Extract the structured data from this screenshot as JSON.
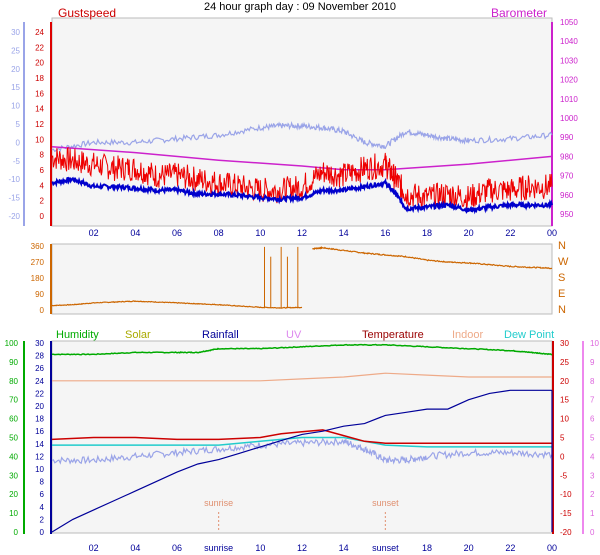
{
  "page_title": "24 hour graph day : 09 November 2010",
  "colors": {
    "gust": "#ee0000",
    "wind": "#0000cc",
    "temp_axis": "#9aa4e8",
    "baro": "#cc22cc",
    "direction": "#cc6600",
    "humidity": "#00aa00",
    "solar": "#aaaa00",
    "rainfall": "#000099",
    "uv": "#dd88ee",
    "temperature": "#990000",
    "indoor": "#eeaa88",
    "dewpoint": "#22cccc",
    "plot_bg": "#f5f5f5"
  },
  "chart_data": [
    {
      "type": "line",
      "title": "",
      "legend": [
        "Gustspeed",
        "Barometer"
      ],
      "x_ticks": [
        "02",
        "04",
        "06",
        "08",
        "10",
        "12",
        "14",
        "16",
        "18",
        "20",
        "22",
        "00"
      ],
      "xlim_hours": [
        0,
        24
      ],
      "left_axis_outer": {
        "ticks": [
          "30",
          "25",
          "20",
          "15",
          "10",
          "5",
          "0",
          "-5",
          "-10",
          "-15",
          "-20"
        ],
        "range": [
          -20,
          30
        ]
      },
      "left_axis_inner": {
        "ticks": [
          "24",
          "22",
          "20",
          "18",
          "16",
          "14",
          "12",
          "10",
          "8",
          "6",
          "4",
          "2",
          "0"
        ],
        "range": [
          0,
          25
        ]
      },
      "right_axis": {
        "ticks": [
          "1050",
          "1040",
          "1030",
          "1020",
          "1010",
          "1000",
          "990",
          "980",
          "970",
          "960",
          "950"
        ],
        "range": [
          946,
          1050
        ]
      },
      "series": [
        {
          "name": "Gustspeed",
          "axis": "inner",
          "x": [
            0,
            1,
            2,
            3,
            4,
            5,
            6,
            7,
            8,
            9,
            10,
            11,
            12,
            13,
            14,
            15,
            16,
            16.5,
            17,
            18,
            19,
            20,
            21,
            22,
            23,
            24
          ],
          "values": [
            8,
            7.5,
            7,
            6.5,
            6.5,
            5.5,
            5.5,
            5,
            4.5,
            4,
            3.5,
            3.5,
            4,
            6,
            5.5,
            6.5,
            7,
            5,
            3,
            2.5,
            3,
            2.5,
            3.5,
            3.5,
            4,
            4
          ]
        },
        {
          "axis": "inner",
          "x": [
            0,
            1,
            2,
            3,
            4,
            5,
            6,
            7,
            8,
            9,
            10,
            11,
            12,
            13,
            14,
            15,
            16,
            16.5,
            17,
            18,
            19,
            20,
            21,
            22,
            23,
            24
          ],
          "values": [
            4.5,
            5,
            4,
            4,
            3.8,
            3.5,
            3.5,
            3,
            3,
            2.8,
            2.5,
            2.3,
            2.5,
            3.5,
            3.5,
            4,
            4.5,
            3,
            1,
            1.2,
            1.5,
            0.8,
            1.2,
            1.5,
            1.5,
            1.5
          ]
        },
        {
          "axis": "outer",
          "x": [
            0,
            2,
            4,
            6,
            8,
            10,
            11,
            12,
            13,
            14,
            15,
            16,
            17,
            18,
            19,
            20,
            22,
            24
          ],
          "values": [
            -2,
            0,
            0,
            1,
            2,
            4,
            4.5,
            4.5,
            4,
            3,
            0,
            -1,
            3,
            2,
            1,
            0.5,
            1,
            2
          ]
        },
        {
          "name": "Barometer",
          "axis": "right",
          "x": [
            0,
            4,
            8,
            12,
            14,
            16,
            20,
            24
          ],
          "values": [
            985,
            982,
            978,
            975,
            973,
            973,
            976,
            980
          ]
        }
      ]
    },
    {
      "type": "scatter",
      "x_ticks": [],
      "left_axis": {
        "ticks": [
          "360",
          "270",
          "180",
          "90",
          "0"
        ],
        "range": [
          0,
          360
        ]
      },
      "right_axis": {
        "ticks": [
          "N",
          "W",
          "S",
          "E",
          "N"
        ]
      },
      "series": [
        {
          "x": [
            0,
            1,
            2,
            3,
            4,
            5,
            6,
            7,
            8,
            9,
            10,
            11,
            12,
            12.5,
            13,
            14,
            15,
            16,
            17,
            18,
            19,
            20,
            21,
            22,
            23,
            24
          ],
          "values": [
            25,
            30,
            40,
            45,
            50,
            45,
            40,
            35,
            30,
            22,
            15,
            12,
            15,
            345,
            350,
            335,
            320,
            310,
            300,
            280,
            270,
            265,
            255,
            245,
            240,
            235
          ]
        }
      ]
    },
    {
      "type": "line",
      "legend": [
        "Humidity",
        "Solar",
        "Rainfall",
        "UV",
        "Temperature",
        "Indoor",
        "Dew Point"
      ],
      "x_ticks": [
        "02",
        "04",
        "06",
        "sunrise",
        "10",
        "12",
        "14",
        "sunset",
        "18",
        "20",
        "22",
        "00"
      ],
      "annotations": [
        {
          "label": "sunrise",
          "x_hours": 8
        },
        {
          "label": "sunset",
          "x_hours": 16
        }
      ],
      "axis_humidity": {
        "ticks": [
          "100",
          "90",
          "80",
          "70",
          "60",
          "50",
          "40",
          "30",
          "20",
          "10",
          "0"
        ],
        "range": [
          0,
          100
        ]
      },
      "axis_rain": {
        "ticks": [
          "30",
          "28",
          "26",
          "24",
          "22",
          "20",
          "18",
          "16",
          "14",
          "12",
          "10",
          "8",
          "6",
          "4",
          "2",
          "0"
        ],
        "range": [
          0,
          30
        ]
      },
      "axis_temp": {
        "ticks": [
          "30",
          "25",
          "20",
          "15",
          "10",
          "5",
          "0",
          "-5",
          "-10",
          "-15",
          "-20"
        ],
        "range": [
          -20,
          30
        ]
      },
      "axis_uv": {
        "ticks": [
          "10",
          "9",
          "8",
          "7",
          "6",
          "5",
          "4",
          "3",
          "2",
          "1",
          "0"
        ],
        "range": [
          0,
          10
        ]
      },
      "series": [
        {
          "name": "Humidity",
          "axis": "humidity",
          "x": [
            0,
            2,
            4,
            6,
            7,
            8,
            10,
            12,
            14,
            16,
            18,
            20,
            22,
            23,
            24
          ],
          "values": [
            94,
            94,
            95,
            95,
            95,
            97,
            97,
            98,
            99,
            99,
            98,
            97,
            96,
            95,
            94
          ]
        },
        {
          "name": "Rainfall",
          "axis": "rain",
          "x": [
            0,
            1,
            2,
            3,
            4,
            5,
            6,
            7,
            8,
            9,
            10,
            11,
            12,
            13,
            14,
            15,
            16,
            17,
            18,
            19,
            20,
            21,
            22,
            23,
            24
          ],
          "values": [
            0,
            2,
            3.5,
            5,
            6.5,
            8,
            9.5,
            10.8,
            11.5,
            12.5,
            13.5,
            14.5,
            15.5,
            16,
            16.8,
            17.2,
            18.5,
            19,
            19.5,
            19.5,
            21,
            22,
            22.5,
            22.5,
            22.5
          ]
        },
        {
          "name": "Temperature",
          "axis": "temp",
          "x": [
            0,
            2,
            4,
            6,
            8,
            10,
            11,
            12,
            13,
            14,
            15,
            16,
            18,
            20,
            22,
            24
          ],
          "values": [
            4.5,
            5,
            5,
            4.5,
            4.5,
            5,
            6,
            6.5,
            7,
            5.5,
            4,
            3.5,
            3.5,
            3.5,
            3.5,
            3.5
          ]
        },
        {
          "name": "Indoor",
          "axis": "temp",
          "x": [
            0,
            2,
            4,
            6,
            8,
            10,
            12,
            14,
            16,
            18,
            20,
            22,
            24
          ],
          "values": [
            20,
            20,
            20,
            20,
            20,
            20,
            20.5,
            21,
            22,
            21.5,
            21,
            21,
            21
          ]
        },
        {
          "name": "Dew Point",
          "axis": "temp",
          "x": [
            0,
            2,
            4,
            6,
            8,
            10,
            12,
            14,
            16,
            18,
            20,
            22,
            24
          ],
          "values": [
            3,
            3,
            3,
            3,
            3,
            4,
            5,
            5,
            3,
            2.5,
            2.5,
            2.5,
            2.5
          ]
        },
        {
          "axis": "temp",
          "x": [
            0,
            2,
            4,
            6,
            8,
            10,
            12,
            14,
            15,
            16,
            17,
            18,
            20,
            22,
            24
          ],
          "values": [
            -1,
            -1,
            0,
            1,
            2,
            3,
            3.5,
            4,
            2,
            -1,
            -1,
            0,
            1,
            1,
            0.5
          ]
        }
      ]
    }
  ]
}
